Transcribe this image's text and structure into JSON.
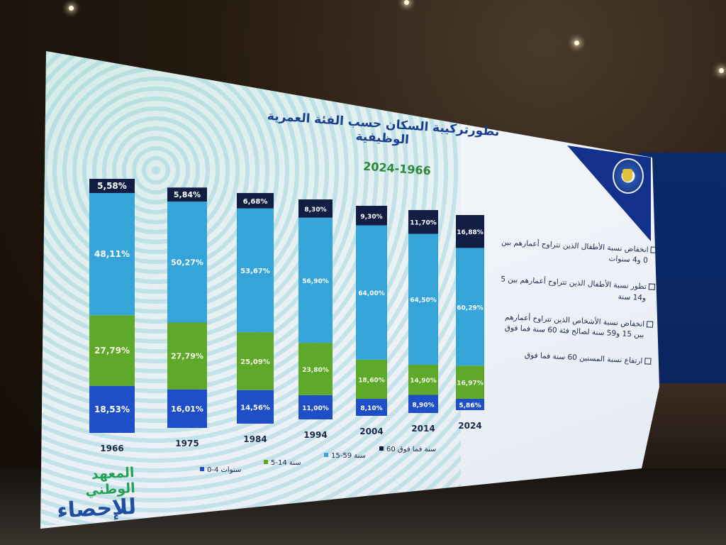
{
  "title": "تطورتركيبة السكان حسب الفئة العمرية الوظيفية",
  "subtitle": "2024-1966",
  "colors": {
    "c0_4": "#1f4fc6",
    "c5_14": "#5ea82a",
    "c15_59": "#35a4d8",
    "c60": "#121d44"
  },
  "chart_data": {
    "type": "bar",
    "stacked": true,
    "percent_stacked": true,
    "categories": [
      "1966",
      "1975",
      "1984",
      "1994",
      "2004",
      "2014",
      "2024"
    ],
    "series": [
      {
        "name": "0-4 سنوات",
        "values": [
          18.53,
          16.01,
          14.56,
          11.0,
          8.1,
          8.9,
          5.86
        ],
        "labels": [
          "18,53%",
          "16,01%",
          "14,56%",
          "11,00%",
          "8,10%",
          "8,90%",
          "5,86%"
        ]
      },
      {
        "name": "5-14 سنة",
        "values": [
          27.79,
          27.79,
          25.09,
          23.8,
          18.6,
          14.9,
          16.97
        ],
        "labels": [
          "27,79%",
          "27,79%",
          "25,09%",
          "23,80%",
          "18,60%",
          "14,90%",
          "16,97%"
        ]
      },
      {
        "name": "15-59 سنة",
        "values": [
          48.11,
          50.27,
          53.67,
          56.9,
          64.0,
          64.5,
          60.29
        ],
        "labels": [
          "48,11%",
          "50,27%",
          "53,67%",
          "56,90%",
          "64,00%",
          "64,50%",
          "60,29%"
        ]
      },
      {
        "name": "60 سنة فما فوق",
        "values": [
          5.58,
          5.84,
          6.68,
          8.3,
          9.3,
          11.7,
          16.88
        ],
        "labels": [
          "5,58%",
          "5,84%",
          "6,68%",
          "8,30%",
          "9,30%",
          "11,70%",
          "16,88%"
        ]
      }
    ],
    "legend_position": "bottom",
    "legend": [
      "0-4 سنوات",
      "5-14 سنة",
      "15-59 سنة",
      "60 سنة فما فوق"
    ]
  },
  "notes": [
    "انخفاض نسبة الأطفال الذين تتراوح أعمارهم بين 0 و4 سنوات",
    "تطور نسبة الأطفال الذين تتراوح أعمارهم بين 5 و14 سنة",
    "انخفاض نسبة الأشخاص الذين تتراوح أعمارهم بين 15 و59 سنة لصالح فئة 60 سنة فما فوق",
    "ارتفاع نسبة المسنين 60 سنة فما فوق"
  ],
  "logo": {
    "line1": "المعهد الوطني",
    "line2": "للإحصاء"
  }
}
